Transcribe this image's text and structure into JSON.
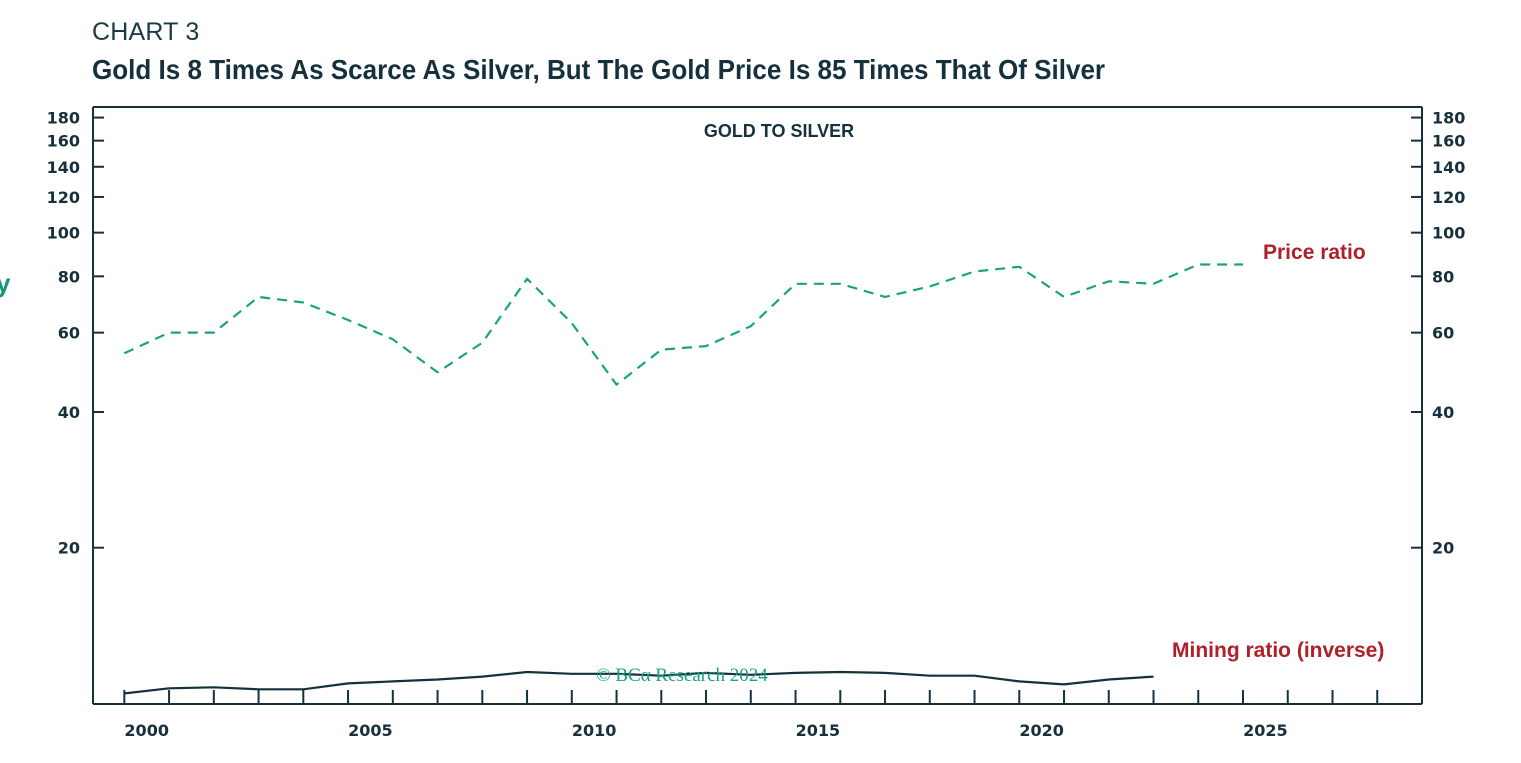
{
  "header": {
    "chart_label": "CHART 3",
    "title": "Gold Is 8 Times As Scarce As Silver, But The Gold Price Is 85 Times That Of Silver",
    "edge_mark": "y"
  },
  "colors": {
    "ink": "#16313b",
    "price_line": "#1aa37e",
    "mining_line": "#16313b",
    "series_label": "#b0202a",
    "copyright": "#1aa37e"
  },
  "copyright": "© BCA Research 2024",
  "chart_data": {
    "type": "line",
    "title": "GOLD TO SILVER",
    "xlabel": "",
    "ylabel": "",
    "y_scale": "log",
    "ylim": [
      9,
      190
    ],
    "xlim": [
      1998.8,
      2028.5
    ],
    "x_tick_labels": [
      "2000",
      "2005",
      "2010",
      "2015",
      "2020",
      "2025"
    ],
    "x_tick_values": [
      2000,
      2005,
      2010,
      2015,
      2020,
      2025
    ],
    "y_tick_labels": [
      "180",
      "160",
      "140",
      "120",
      "100",
      "80",
      "60",
      "40",
      "20"
    ],
    "y_tick_values": [
      180,
      160,
      140,
      120,
      100,
      80,
      60,
      40,
      20
    ],
    "minor_x_ticks": [
      1999.5,
      2000.5,
      2001.5,
      2002.5,
      2003.5,
      2004.5,
      2005.5,
      2006.5,
      2007.5,
      2008.5,
      2009.5,
      2010.5,
      2011.5,
      2012.5,
      2013.5,
      2014.5,
      2015.5,
      2016.5,
      2017.5,
      2018.5,
      2019.5,
      2020.5,
      2021.5,
      2022.5,
      2023.5,
      2024.5,
      2025.5,
      2026.5,
      2027.5
    ],
    "grid": false,
    "series": [
      {
        "name": "Price ratio",
        "style": "dashed",
        "x": [
          1999.5,
          2000.5,
          2001.5,
          2002.5,
          2003.5,
          2004.5,
          2005.5,
          2006.5,
          2007.5,
          2008.5,
          2009.5,
          2010.5,
          2011.5,
          2012.5,
          2013.5,
          2014.5,
          2015.5,
          2016.5,
          2017.5,
          2018.5,
          2019.5,
          2020.5,
          2021.5,
          2022.5,
          2023.5,
          2024.5
        ],
        "values": [
          54,
          60,
          60,
          72,
          70,
          64,
          58,
          49,
          57,
          79,
          63,
          46,
          55,
          56,
          62,
          77,
          77,
          72,
          76,
          82,
          84,
          72,
          78,
          77,
          85,
          85
        ]
      },
      {
        "name": "Mining ratio (inverse)",
        "style": "solid",
        "x": [
          1999.5,
          2000.5,
          2001.5,
          2002.5,
          2003.5,
          2004.5,
          2005.5,
          2006.5,
          2007.5,
          2008.5,
          2009.5,
          2010.5,
          2011.5,
          2012.5,
          2013.5,
          2014.5,
          2015.5,
          2016.5,
          2017.5,
          2018.5,
          2019.5,
          2020.5,
          2021.5,
          2022.5
        ],
        "values": [
          9.5,
          9.75,
          9.8,
          9.7,
          9.7,
          10.0,
          10.1,
          10.2,
          10.35,
          10.6,
          10.5,
          10.5,
          10.4,
          10.55,
          10.45,
          10.55,
          10.6,
          10.55,
          10.4,
          10.4,
          10.1,
          9.95,
          10.2,
          10.35
        ]
      }
    ]
  }
}
